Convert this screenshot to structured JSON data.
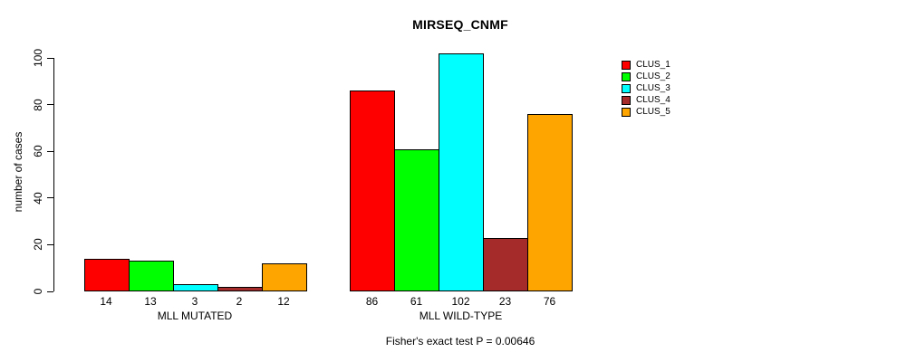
{
  "chart_data": {
    "type": "bar",
    "title": "MIRSEQ_CNMF",
    "xlabel": "",
    "ylabel": "number of cases",
    "ylim": [
      0,
      100
    ],
    "yticks": [
      0,
      20,
      40,
      60,
      80,
      100
    ],
    "grid": false,
    "legend_position": "right",
    "series": [
      {
        "name": "CLUS_1",
        "color": "#FF0000"
      },
      {
        "name": "CLUS_2",
        "color": "#00FF00"
      },
      {
        "name": "CLUS_3",
        "color": "#00FFFF"
      },
      {
        "name": "CLUS_4",
        "color": "#A52A2A"
      },
      {
        "name": "CLUS_5",
        "color": "#FFA500"
      }
    ],
    "groups": [
      {
        "label": "MLL MUTATED",
        "values": [
          14,
          13,
          3,
          2,
          12
        ]
      },
      {
        "label": "MLL WILD-TYPE",
        "values": [
          86,
          61,
          102,
          23,
          76
        ]
      }
    ],
    "bar_value_labels": true,
    "annotation": "Fisher's exact test P = 0.00646"
  }
}
